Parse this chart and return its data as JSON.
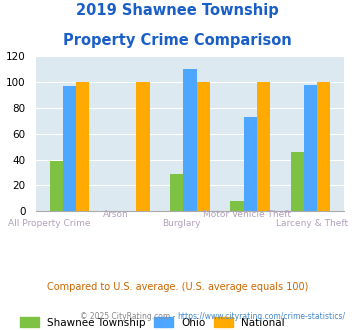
{
  "title_line1": "2019 Shawnee Township",
  "title_line2": "Property Crime Comparison",
  "categories_bottom": [
    "All Property Crime",
    "",
    "Burglary",
    "",
    "Larceny & Theft"
  ],
  "categories_top": [
    "",
    "Arson",
    "",
    "Motor Vehicle Theft",
    ""
  ],
  "shawnee": [
    39,
    0,
    29,
    8,
    46
  ],
  "ohio": [
    97,
    0,
    110,
    73,
    98
  ],
  "national": [
    100,
    100,
    100,
    100,
    100
  ],
  "color_shawnee": "#7dc242",
  "color_ohio": "#4da6ff",
  "color_national": "#ffaa00",
  "ylim": [
    0,
    120
  ],
  "yticks": [
    0,
    20,
    40,
    60,
    80,
    100,
    120
  ],
  "bg_color": "#dce9f0",
  "title_color": "#1a5fc8",
  "xlabel_color_bottom": "#b0a0bb",
  "xlabel_color_top": "#b0a0bb",
  "legend_labels": [
    "Shawnee Township",
    "Ohio",
    "National"
  ],
  "footnote1": "Compared to U.S. average. (U.S. average equals 100)",
  "footnote2_prefix": "© 2025 CityRating.com - ",
  "footnote2_link": "https://www.cityrating.com/crime-statistics/",
  "footnote1_color": "#cc6600",
  "footnote2_color": "#888888",
  "footnote2_link_color": "#4488cc"
}
